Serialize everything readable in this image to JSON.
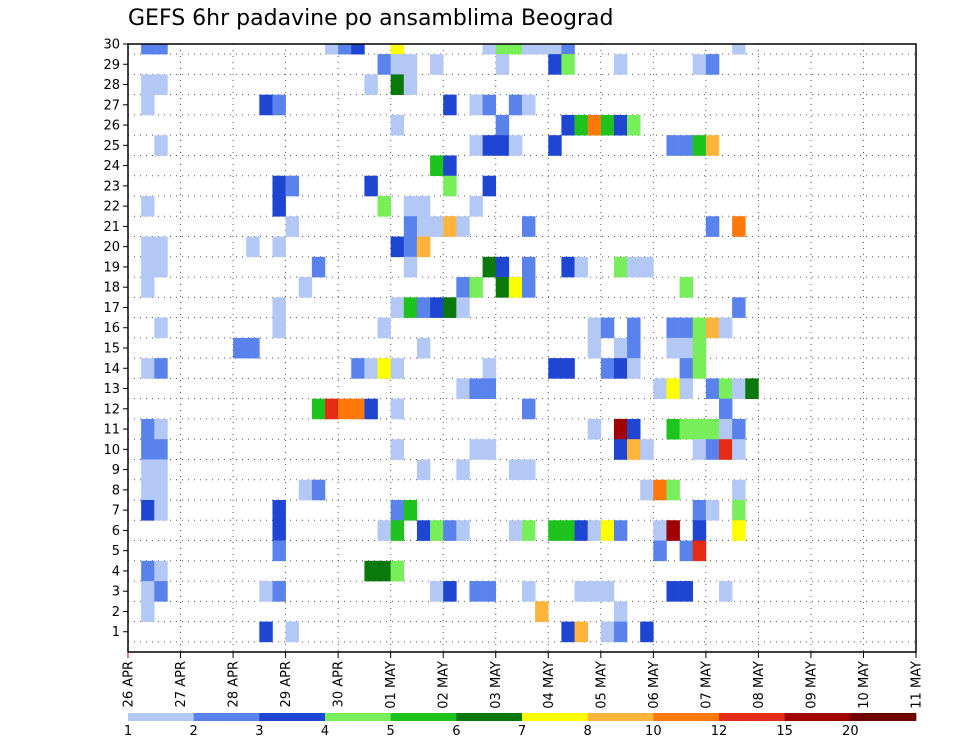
{
  "chart_data": {
    "type": "heatmap",
    "title": "GEFS 6hr padavine po ansamblima Beograd",
    "xlabel": "",
    "ylabel": "",
    "x_tick_labels": [
      "26 APR",
      "27 APR",
      "28 APR",
      "29 APR",
      "30 APR",
      "01 MAY",
      "02 MAY",
      "03 MAY",
      "04 MAY",
      "05 MAY",
      "06 MAY",
      "07 MAY",
      "08 MAY",
      "09 MAY",
      "10 MAY",
      "11 MAY"
    ],
    "y_tick_labels": [
      "1",
      "2",
      "3",
      "4",
      "5",
      "6",
      "7",
      "8",
      "9",
      "10",
      "11",
      "12",
      "13",
      "14",
      "15",
      "16",
      "17",
      "18",
      "19",
      "20",
      "21",
      "22",
      "23",
      "24",
      "25",
      "26",
      "27",
      "28",
      "29",
      "30"
    ],
    "members_range": [
      1,
      30
    ],
    "steps_per_day": 4,
    "grid": "dotted",
    "colorbar": {
      "levels": [
        "1",
        "2",
        "3",
        "4",
        "5",
        "6",
        "7",
        "8",
        "10",
        "12",
        "15",
        "20"
      ],
      "colors": [
        "#b4c8f5",
        "#5a82ec",
        "#1e46d2",
        "#78ee5a",
        "#1ec31e",
        "#0a780a",
        "#ffff00",
        "#ffb43c",
        "#ff780a",
        "#e62b14",
        "#a00000",
        "#6e0000"
      ]
    },
    "bins_meaning": "class 1 = 1-2 mm, 2 = 2-3, 3 = 3-4, 4 = 4-5, 5 = 5-6, 6 = 6-7, 7 = 7-8, 8 = 8-10, 9 = 10-12, 10 = 12-15, 11 = 15-20, 12 = >20",
    "cells": [
      [
        30,
        1,
        2
      ],
      [
        30,
        2,
        2
      ],
      [
        30,
        15,
        1
      ],
      [
        30,
        16,
        2
      ],
      [
        30,
        17,
        3
      ],
      [
        30,
        20,
        7
      ],
      [
        30,
        27,
        1
      ],
      [
        30,
        28,
        4
      ],
      [
        30,
        29,
        4
      ],
      [
        30,
        30,
        1
      ],
      [
        30,
        31,
        1
      ],
      [
        30,
        32,
        1
      ],
      [
        30,
        33,
        2
      ],
      [
        30,
        46,
        1
      ],
      [
        29,
        19,
        2
      ],
      [
        29,
        20,
        1
      ],
      [
        29,
        21,
        1
      ],
      [
        29,
        23,
        1
      ],
      [
        29,
        28,
        1
      ],
      [
        29,
        32,
        3
      ],
      [
        29,
        33,
        4
      ],
      [
        29,
        37,
        1
      ],
      [
        29,
        43,
        1
      ],
      [
        29,
        44,
        2
      ],
      [
        28,
        1,
        1
      ],
      [
        28,
        2,
        1
      ],
      [
        28,
        18,
        1
      ],
      [
        28,
        20,
        6
      ],
      [
        28,
        21,
        1
      ],
      [
        27,
        1,
        1
      ],
      [
        27,
        10,
        3
      ],
      [
        27,
        11,
        2
      ],
      [
        27,
        24,
        3
      ],
      [
        27,
        26,
        1
      ],
      [
        27,
        27,
        2
      ],
      [
        27,
        29,
        2
      ],
      [
        27,
        30,
        1
      ],
      [
        26,
        20,
        1
      ],
      [
        26,
        28,
        2
      ],
      [
        26,
        33,
        3
      ],
      [
        26,
        34,
        5
      ],
      [
        26,
        35,
        9
      ],
      [
        26,
        36,
        5
      ],
      [
        26,
        37,
        3
      ],
      [
        26,
        38,
        4
      ],
      [
        25,
        2,
        1
      ],
      [
        25,
        26,
        1
      ],
      [
        25,
        27,
        3
      ],
      [
        25,
        28,
        3
      ],
      [
        25,
        29,
        1
      ],
      [
        25,
        32,
        3
      ],
      [
        25,
        41,
        2
      ],
      [
        25,
        42,
        2
      ],
      [
        25,
        43,
        5
      ],
      [
        25,
        44,
        8
      ],
      [
        24,
        23,
        5
      ],
      [
        24,
        24,
        3
      ],
      [
        23,
        11,
        3
      ],
      [
        23,
        12,
        2
      ],
      [
        23,
        18,
        3
      ],
      [
        23,
        24,
        4
      ],
      [
        23,
        27,
        3
      ],
      [
        22,
        1,
        1
      ],
      [
        22,
        11,
        3
      ],
      [
        22,
        19,
        4
      ],
      [
        22,
        21,
        1
      ],
      [
        22,
        22,
        1
      ],
      [
        22,
        26,
        1
      ],
      [
        21,
        12,
        1
      ],
      [
        21,
        21,
        2
      ],
      [
        21,
        22,
        1
      ],
      [
        21,
        23,
        1
      ],
      [
        21,
        24,
        8
      ],
      [
        21,
        25,
        1
      ],
      [
        21,
        30,
        2
      ],
      [
        21,
        44,
        2
      ],
      [
        21,
        46,
        9
      ],
      [
        20,
        1,
        1
      ],
      [
        20,
        2,
        1
      ],
      [
        20,
        9,
        1
      ],
      [
        20,
        11,
        1
      ],
      [
        20,
        20,
        3
      ],
      [
        20,
        21,
        2
      ],
      [
        20,
        22,
        8
      ],
      [
        19,
        1,
        1
      ],
      [
        19,
        2,
        1
      ],
      [
        19,
        14,
        2
      ],
      [
        19,
        21,
        1
      ],
      [
        19,
        27,
        6
      ],
      [
        19,
        28,
        3
      ],
      [
        19,
        30,
        2
      ],
      [
        19,
        33,
        3
      ],
      [
        19,
        34,
        1
      ],
      [
        19,
        37,
        4
      ],
      [
        19,
        38,
        1
      ],
      [
        19,
        39,
        1
      ],
      [
        18,
        1,
        1
      ],
      [
        18,
        13,
        1
      ],
      [
        18,
        25,
        2
      ],
      [
        18,
        26,
        4
      ],
      [
        18,
        28,
        6
      ],
      [
        18,
        29,
        7
      ],
      [
        18,
        30,
        2
      ],
      [
        18,
        42,
        4
      ],
      [
        17,
        11,
        1
      ],
      [
        17,
        20,
        1
      ],
      [
        17,
        21,
        5
      ],
      [
        17,
        22,
        2
      ],
      [
        17,
        23,
        3
      ],
      [
        17,
        24,
        6
      ],
      [
        17,
        25,
        1
      ],
      [
        17,
        46,
        2
      ],
      [
        16,
        2,
        1
      ],
      [
        16,
        11,
        1
      ],
      [
        16,
        19,
        1
      ],
      [
        16,
        35,
        1
      ],
      [
        16,
        36,
        2
      ],
      [
        16,
        38,
        2
      ],
      [
        16,
        41,
        2
      ],
      [
        16,
        42,
        2
      ],
      [
        16,
        43,
        4
      ],
      [
        16,
        44,
        8
      ],
      [
        16,
        45,
        1
      ],
      [
        15,
        8,
        2
      ],
      [
        15,
        9,
        2
      ],
      [
        15,
        22,
        1
      ],
      [
        15,
        35,
        1
      ],
      [
        15,
        37,
        1
      ],
      [
        15,
        38,
        2
      ],
      [
        15,
        41,
        1
      ],
      [
        15,
        42,
        1
      ],
      [
        15,
        43,
        4
      ],
      [
        14,
        1,
        1
      ],
      [
        14,
        2,
        2
      ],
      [
        14,
        17,
        2
      ],
      [
        14,
        18,
        1
      ],
      [
        14,
        19,
        7
      ],
      [
        14,
        20,
        1
      ],
      [
        14,
        27,
        1
      ],
      [
        14,
        32,
        3
      ],
      [
        14,
        33,
        3
      ],
      [
        14,
        36,
        2
      ],
      [
        14,
        37,
        3
      ],
      [
        14,
        38,
        1
      ],
      [
        14,
        42,
        2
      ],
      [
        14,
        43,
        4
      ],
      [
        13,
        25,
        1
      ],
      [
        13,
        26,
        2
      ],
      [
        13,
        27,
        2
      ],
      [
        13,
        40,
        1
      ],
      [
        13,
        41,
        7
      ],
      [
        13,
        42,
        1
      ],
      [
        13,
        44,
        2
      ],
      [
        13,
        45,
        4
      ],
      [
        13,
        46,
        1
      ],
      [
        13,
        47,
        6
      ],
      [
        12,
        14,
        5
      ],
      [
        12,
        15,
        10
      ],
      [
        12,
        16,
        9
      ],
      [
        12,
        17,
        9
      ],
      [
        12,
        18,
        3
      ],
      [
        12,
        20,
        1
      ],
      [
        12,
        30,
        2
      ],
      [
        12,
        45,
        2
      ],
      [
        11,
        1,
        2
      ],
      [
        11,
        2,
        1
      ],
      [
        11,
        35,
        1
      ],
      [
        11,
        37,
        11
      ],
      [
        11,
        38,
        3
      ],
      [
        11,
        41,
        5
      ],
      [
        11,
        42,
        4
      ],
      [
        11,
        43,
        4
      ],
      [
        11,
        44,
        4
      ],
      [
        11,
        45,
        1
      ],
      [
        11,
        46,
        2
      ],
      [
        10,
        1,
        2
      ],
      [
        10,
        2,
        2
      ],
      [
        10,
        20,
        1
      ],
      [
        10,
        26,
        1
      ],
      [
        10,
        27,
        1
      ],
      [
        10,
        37,
        3
      ],
      [
        10,
        38,
        8
      ],
      [
        10,
        39,
        1
      ],
      [
        10,
        43,
        1
      ],
      [
        10,
        44,
        2
      ],
      [
        10,
        45,
        10
      ],
      [
        10,
        46,
        1
      ],
      [
        9,
        1,
        1
      ],
      [
        9,
        2,
        1
      ],
      [
        9,
        22,
        1
      ],
      [
        9,
        25,
        1
      ],
      [
        9,
        29,
        1
      ],
      [
        9,
        30,
        1
      ],
      [
        8,
        1,
        1
      ],
      [
        8,
        2,
        1
      ],
      [
        8,
        13,
        1
      ],
      [
        8,
        14,
        2
      ],
      [
        8,
        39,
        1
      ],
      [
        8,
        40,
        9
      ],
      [
        8,
        41,
        4
      ],
      [
        8,
        46,
        1
      ],
      [
        7,
        1,
        3
      ],
      [
        7,
        2,
        1
      ],
      [
        7,
        11,
        3
      ],
      [
        7,
        20,
        2
      ],
      [
        7,
        21,
        5
      ],
      [
        7,
        43,
        2
      ],
      [
        7,
        44,
        1
      ],
      [
        7,
        46,
        4
      ],
      [
        6,
        11,
        3
      ],
      [
        6,
        19,
        1
      ],
      [
        6,
        20,
        5
      ],
      [
        6,
        22,
        3
      ],
      [
        6,
        23,
        4
      ],
      [
        6,
        24,
        2
      ],
      [
        6,
        25,
        1
      ],
      [
        6,
        29,
        1
      ],
      [
        6,
        30,
        4
      ],
      [
        6,
        32,
        5
      ],
      [
        6,
        33,
        5
      ],
      [
        6,
        34,
        3
      ],
      [
        6,
        35,
        1
      ],
      [
        6,
        36,
        7
      ],
      [
        6,
        37,
        2
      ],
      [
        6,
        40,
        1
      ],
      [
        6,
        41,
        11
      ],
      [
        6,
        43,
        3
      ],
      [
        6,
        46,
        7
      ],
      [
        5,
        11,
        2
      ],
      [
        5,
        40,
        2
      ],
      [
        5,
        42,
        2
      ],
      [
        5,
        43,
        10
      ],
      [
        4,
        1,
        2
      ],
      [
        4,
        2,
        1
      ],
      [
        4,
        18,
        6
      ],
      [
        4,
        19,
        6
      ],
      [
        4,
        20,
        4
      ],
      [
        3,
        1,
        1
      ],
      [
        3,
        2,
        2
      ],
      [
        3,
        10,
        1
      ],
      [
        3,
        11,
        2
      ],
      [
        3,
        23,
        1
      ],
      [
        3,
        24,
        3
      ],
      [
        3,
        26,
        2
      ],
      [
        3,
        27,
        2
      ],
      [
        3,
        30,
        1
      ],
      [
        3,
        34,
        1
      ],
      [
        3,
        35,
        1
      ],
      [
        3,
        36,
        1
      ],
      [
        3,
        41,
        3
      ],
      [
        3,
        42,
        3
      ],
      [
        3,
        45,
        1
      ],
      [
        2,
        1,
        1
      ],
      [
        2,
        31,
        8
      ],
      [
        2,
        37,
        1
      ],
      [
        1,
        10,
        3
      ],
      [
        1,
        12,
        1
      ],
      [
        1,
        33,
        3
      ],
      [
        1,
        34,
        8
      ],
      [
        1,
        36,
        1
      ],
      [
        1,
        37,
        2
      ],
      [
        1,
        39,
        3
      ]
    ]
  }
}
